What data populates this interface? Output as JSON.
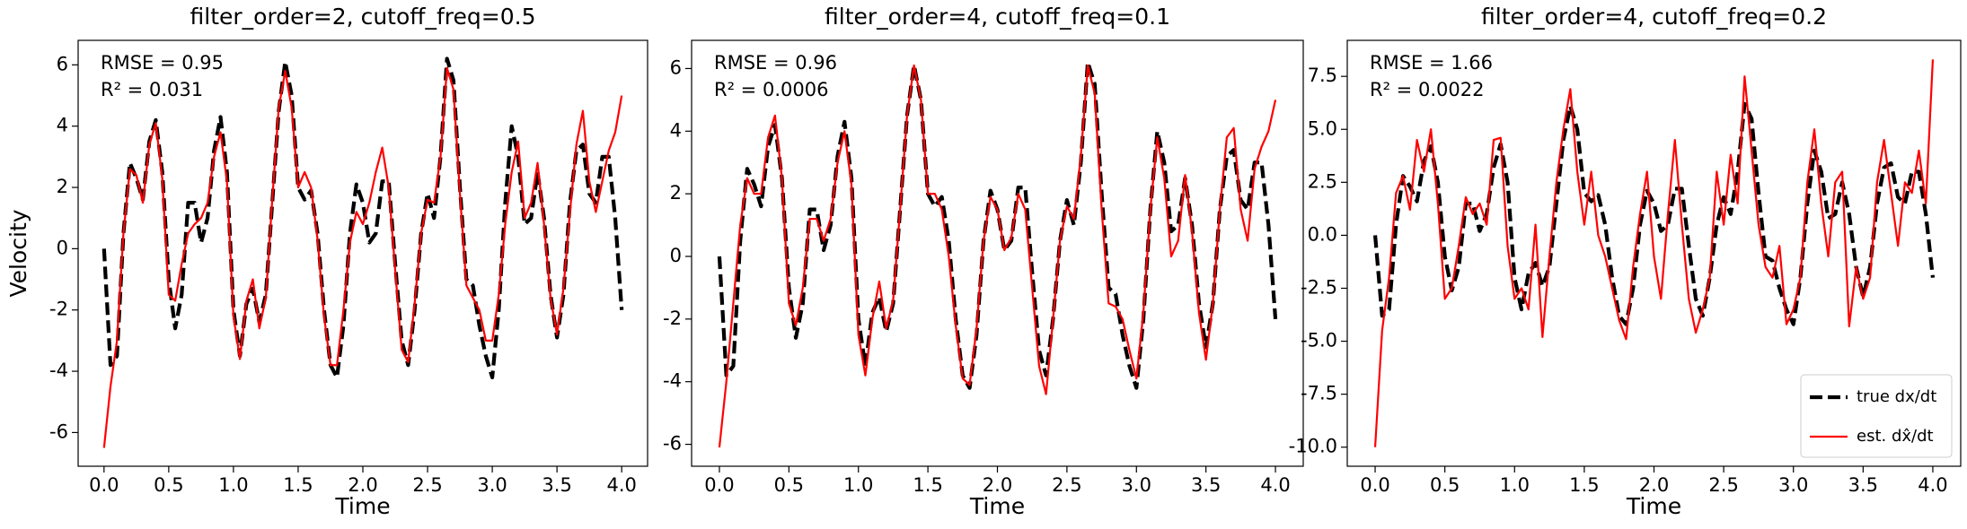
{
  "chart_data": [
    {
      "type": "line",
      "title": "filter_order=2, cutoff_freq=0.5",
      "xlabel": "Time",
      "ylabel": "Velocity",
      "annotations": [
        "RMSE = 0.95",
        "R² = 0.031"
      ],
      "x": [
        0,
        0.05,
        0.1,
        0.15,
        0.2,
        0.25,
        0.3,
        0.35,
        0.4,
        0.45,
        0.5,
        0.55,
        0.6,
        0.65,
        0.7,
        0.75,
        0.8,
        0.85,
        0.9,
        0.95,
        1,
        1.05,
        1.1,
        1.15,
        1.2,
        1.25,
        1.3,
        1.35,
        1.4,
        1.45,
        1.5,
        1.55,
        1.6,
        1.65,
        1.7,
        1.75,
        1.8,
        1.85,
        1.9,
        1.95,
        2,
        2.05,
        2.1,
        2.15,
        2.2,
        2.25,
        2.3,
        2.35,
        2.4,
        2.45,
        2.5,
        2.55,
        2.6,
        2.65,
        2.7,
        2.75,
        2.8,
        2.85,
        2.9,
        2.95,
        3,
        3.05,
        3.1,
        3.15,
        3.2,
        3.25,
        3.3,
        3.35,
        3.4,
        3.45,
        3.5,
        3.55,
        3.6,
        3.65,
        3.7,
        3.75,
        3.8,
        3.85,
        3.9,
        3.95,
        4
      ],
      "series": [
        {
          "name": "true dx/dt",
          "color": "#000000",
          "dashed": true,
          "values": [
            0,
            -3.8,
            -3.5,
            0.5,
            2.8,
            2.3,
            1.6,
            3.5,
            4.2,
            2.5,
            -1.0,
            -2.6,
            -1.5,
            1.5,
            1.5,
            0.2,
            1.0,
            3.2,
            4.3,
            2.5,
            -2.0,
            -3.5,
            -1.8,
            -1.3,
            -2.4,
            -1.5,
            1.5,
            4.5,
            6.1,
            5.0,
            2.0,
            1.6,
            1.9,
            0.5,
            -2.0,
            -3.8,
            -4.2,
            -2.5,
            0.5,
            2.1,
            1.5,
            0.2,
            0.5,
            2.2,
            2.2,
            -0.5,
            -3.0,
            -3.8,
            -2.0,
            0.5,
            1.8,
            1.0,
            3.0,
            6.2,
            5.5,
            2.0,
            -1.0,
            -1.2,
            -2.5,
            -3.5,
            -4.2,
            -2.0,
            1.5,
            4.0,
            3.0,
            0.8,
            1.0,
            2.5,
            1.0,
            -1.5,
            -2.9,
            -1.5,
            1.5,
            3.2,
            3.4,
            1.8,
            1.5,
            3.0,
            3.0,
            1.0,
            -2.0
          ]
        },
        {
          "name": "est. dx̂/dt",
          "color": "#ff0000",
          "dashed": false,
          "values": [
            -6.5,
            -4.5,
            -3.0,
            0.5,
            2.6,
            2.4,
            1.5,
            3.4,
            4.1,
            2.3,
            -1.5,
            -1.7,
            -0.5,
            0.5,
            0.8,
            1.0,
            1.5,
            3.0,
            3.8,
            2.2,
            -2.2,
            -3.6,
            -1.7,
            -1.0,
            -2.6,
            -1.6,
            1.6,
            4.6,
            5.8,
            4.6,
            2.0,
            2.5,
            2.0,
            0.3,
            -2.2,
            -3.8,
            -3.8,
            -2.0,
            0.2,
            1.2,
            0.8,
            1.5,
            2.5,
            3.3,
            2.0,
            -0.7,
            -3.3,
            -3.7,
            -1.8,
            0.5,
            1.6,
            1.5,
            3.0,
            5.9,
            5.2,
            1.8,
            -1.2,
            -1.6,
            -2.0,
            -3.0,
            -3.0,
            -1.5,
            0.8,
            2.5,
            3.5,
            1.0,
            1.5,
            2.8,
            0.8,
            -1.6,
            -2.8,
            -1.3,
            1.2,
            3.4,
            4.5,
            2.2,
            1.2,
            2.2,
            3.2,
            3.8,
            5.0
          ]
        }
      ],
      "xlim": [
        -0.2,
        4.2
      ],
      "xticks": [
        {
          "value": 0,
          "label": "0.0"
        },
        0.5,
        {
          "value": 1,
          "label": "1.0"
        },
        1.5,
        {
          "value": 2,
          "label": "2.0"
        },
        2.5,
        {
          "value": 3,
          "label": "3.0"
        },
        3.5,
        {
          "value": 4,
          "label": "4.0"
        }
      ],
      "ylim": [
        -7.1,
        6.8
      ],
      "yticks": [
        -6,
        -4,
        -2,
        0,
        2,
        4,
        6
      ],
      "legend": false
    },
    {
      "type": "line",
      "title": "filter_order=4, cutoff_freq=0.1",
      "xlabel": "Time",
      "annotations": [
        "RMSE = 0.96",
        "R² = 0.0006"
      ],
      "x": [
        0,
        0.05,
        0.1,
        0.15,
        0.2,
        0.25,
        0.3,
        0.35,
        0.4,
        0.45,
        0.5,
        0.55,
        0.6,
        0.65,
        0.7,
        0.75,
        0.8,
        0.85,
        0.9,
        0.95,
        1,
        1.05,
        1.1,
        1.15,
        1.2,
        1.25,
        1.3,
        1.35,
        1.4,
        1.45,
        1.5,
        1.55,
        1.6,
        1.65,
        1.7,
        1.75,
        1.8,
        1.85,
        1.9,
        1.95,
        2,
        2.05,
        2.1,
        2.15,
        2.2,
        2.25,
        2.3,
        2.35,
        2.4,
        2.45,
        2.5,
        2.55,
        2.6,
        2.65,
        2.7,
        2.75,
        2.8,
        2.85,
        2.9,
        2.95,
        3,
        3.05,
        3.1,
        3.15,
        3.2,
        3.25,
        3.3,
        3.35,
        3.4,
        3.45,
        3.5,
        3.55,
        3.6,
        3.65,
        3.7,
        3.75,
        3.8,
        3.85,
        3.9,
        3.95,
        4
      ],
      "series": [
        {
          "name": "true dx/dt",
          "color": "#000000",
          "dashed": true,
          "values": [
            0,
            -3.8,
            -3.5,
            0.5,
            2.8,
            2.3,
            1.6,
            3.5,
            4.2,
            2.5,
            -1.0,
            -2.6,
            -1.5,
            1.5,
            1.5,
            0.2,
            1.0,
            3.2,
            4.3,
            2.5,
            -2.0,
            -3.5,
            -1.8,
            -1.3,
            -2.4,
            -1.5,
            1.5,
            4.5,
            6.1,
            5.0,
            2.0,
            1.6,
            1.9,
            0.5,
            -2.0,
            -3.8,
            -4.2,
            -2.5,
            0.5,
            2.1,
            1.5,
            0.2,
            0.5,
            2.2,
            2.2,
            -0.5,
            -3.0,
            -3.8,
            -2.0,
            0.5,
            1.8,
            1.0,
            3.0,
            6.2,
            5.5,
            2.0,
            -1.0,
            -1.2,
            -2.5,
            -3.5,
            -4.2,
            -2.0,
            1.5,
            4.0,
            3.0,
            0.8,
            1.0,
            2.5,
            1.0,
            -1.5,
            -2.9,
            -1.5,
            1.5,
            3.2,
            3.4,
            1.8,
            1.5,
            3.0,
            3.0,
            1.0,
            -2.0
          ]
        },
        {
          "name": "est. dx̂/dt",
          "color": "#ff0000",
          "dashed": false,
          "values": [
            -6.1,
            -4.0,
            -1.5,
            1.0,
            2.5,
            2.0,
            2.0,
            3.8,
            4.5,
            2.5,
            -1.5,
            -2.2,
            -1.0,
            1.2,
            1.2,
            0.5,
            1.2,
            3.0,
            4.0,
            2.3,
            -2.5,
            -3.8,
            -2.0,
            -0.8,
            -2.3,
            -1.4,
            1.5,
            4.5,
            6.1,
            5.0,
            2.0,
            2.0,
            1.5,
            0.0,
            -2.2,
            -3.9,
            -4.1,
            -2.3,
            0.5,
            1.9,
            1.5,
            0.2,
            0.6,
            2.0,
            1.5,
            -1.0,
            -3.5,
            -4.4,
            -2.0,
            0.5,
            1.6,
            1.2,
            3.2,
            6.1,
            5.2,
            1.5,
            -1.5,
            -1.6,
            -2.0,
            -3.0,
            -3.9,
            -1.8,
            1.5,
            3.8,
            2.5,
            0.0,
            0.5,
            2.6,
            0.8,
            -1.8,
            -3.3,
            -1.5,
            1.5,
            3.8,
            4.1,
            1.5,
            0.5,
            2.8,
            3.5,
            4.0,
            5.0
          ]
        }
      ],
      "xlim": [
        -0.2,
        4.2
      ],
      "xticks": [
        {
          "value": 0,
          "label": "0.0"
        },
        0.5,
        {
          "value": 1,
          "label": "1.0"
        },
        1.5,
        {
          "value": 2,
          "label": "2.0"
        },
        2.5,
        {
          "value": 3,
          "label": "3.0"
        },
        3.5,
        {
          "value": 4,
          "label": "4.0"
        }
      ],
      "ylim": [
        -6.7,
        6.9
      ],
      "yticks": [
        -6,
        -4,
        -2,
        0,
        2,
        4,
        6
      ],
      "legend": false
    },
    {
      "type": "line",
      "title": "filter_order=4, cutoff_freq=0.2",
      "xlabel": "Time",
      "annotations": [
        "RMSE = 1.66",
        "R² = 0.0022"
      ],
      "x": [
        0,
        0.05,
        0.1,
        0.15,
        0.2,
        0.25,
        0.3,
        0.35,
        0.4,
        0.45,
        0.5,
        0.55,
        0.6,
        0.65,
        0.7,
        0.75,
        0.8,
        0.85,
        0.9,
        0.95,
        1,
        1.05,
        1.1,
        1.15,
        1.2,
        1.25,
        1.3,
        1.35,
        1.4,
        1.45,
        1.5,
        1.55,
        1.6,
        1.65,
        1.7,
        1.75,
        1.8,
        1.85,
        1.9,
        1.95,
        2,
        2.05,
        2.1,
        2.15,
        2.2,
        2.25,
        2.3,
        2.35,
        2.4,
        2.45,
        2.5,
        2.55,
        2.6,
        2.65,
        2.7,
        2.75,
        2.8,
        2.85,
        2.9,
        2.95,
        3,
        3.05,
        3.1,
        3.15,
        3.2,
        3.25,
        3.3,
        3.35,
        3.4,
        3.45,
        3.5,
        3.55,
        3.6,
        3.65,
        3.7,
        3.75,
        3.8,
        3.85,
        3.9,
        3.95,
        4
      ],
      "series": [
        {
          "name": "true dx/dt",
          "color": "#000000",
          "dashed": true,
          "values": [
            0,
            -3.8,
            -3.5,
            0.5,
            2.8,
            2.3,
            1.6,
            3.5,
            4.2,
            2.5,
            -1.0,
            -2.6,
            -1.5,
            1.5,
            1.5,
            0.2,
            1.0,
            3.2,
            4.3,
            2.5,
            -2.0,
            -3.5,
            -1.8,
            -1.3,
            -2.4,
            -1.5,
            1.5,
            4.5,
            6.1,
            5.0,
            2.0,
            1.6,
            1.9,
            0.5,
            -2.0,
            -3.8,
            -4.2,
            -2.5,
            0.5,
            2.1,
            1.5,
            0.2,
            0.5,
            2.2,
            2.2,
            -0.5,
            -3.0,
            -3.8,
            -2.0,
            0.5,
            1.8,
            1.0,
            3.0,
            6.2,
            5.5,
            2.0,
            -1.0,
            -1.2,
            -2.5,
            -3.5,
            -4.2,
            -2.0,
            1.5,
            4.0,
            3.0,
            0.8,
            1.0,
            2.5,
            1.0,
            -1.5,
            -2.9,
            -1.5,
            1.5,
            3.2,
            3.4,
            1.8,
            1.5,
            3.0,
            3.0,
            1.0,
            -2.0
          ]
        },
        {
          "name": "est. dx̂/dt",
          "color": "#ff0000",
          "dashed": false,
          "values": [
            -10.0,
            -4.5,
            -2.0,
            2.0,
            2.8,
            1.2,
            4.5,
            3.0,
            5.0,
            1.5,
            -3.0,
            -2.5,
            -0.5,
            1.8,
            1.0,
            1.5,
            0.5,
            4.5,
            4.6,
            -0.5,
            -3.0,
            -2.5,
            -3.5,
            0.5,
            -4.8,
            -1.0,
            2.5,
            5.0,
            6.9,
            3.0,
            0.5,
            3.0,
            0.0,
            -1.0,
            -2.5,
            -4.0,
            -4.9,
            -1.5,
            1.0,
            3.0,
            -1.0,
            -3.0,
            1.0,
            4.5,
            0.5,
            -3.0,
            -4.6,
            -3.5,
            -2.0,
            3.0,
            0.5,
            3.8,
            1.5,
            7.5,
            4.0,
            0.5,
            -1.5,
            -2.0,
            -0.5,
            -4.2,
            -3.5,
            -2.0,
            2.5,
            5.0,
            1.5,
            -1.0,
            2.5,
            3.0,
            -4.3,
            -1.5,
            -3.0,
            -2.0,
            2.5,
            4.5,
            2.0,
            -0.5,
            2.5,
            2.0,
            4.0,
            1.5,
            8.3
          ]
        }
      ],
      "xlim": [
        -0.2,
        4.2
      ],
      "xticks": [
        {
          "value": 0,
          "label": "0.0"
        },
        0.5,
        {
          "value": 1,
          "label": "1.0"
        },
        1.5,
        {
          "value": 2,
          "label": "2.0"
        },
        2.5,
        {
          "value": 3,
          "label": "3.0"
        },
        3.5,
        {
          "value": 4,
          "label": "4.0"
        }
      ],
      "ylim": [
        -10.9,
        9.2
      ],
      "yticks": [
        {
          "value": -10,
          "label": "-10.0"
        },
        -7.5,
        {
          "value": -5,
          "label": "-5.0"
        },
        -2.5,
        {
          "value": 0,
          "label": "0.0"
        },
        2.5,
        {
          "value": 5,
          "label": "5.0"
        },
        7.5
      ],
      "legend": "lower right"
    }
  ]
}
